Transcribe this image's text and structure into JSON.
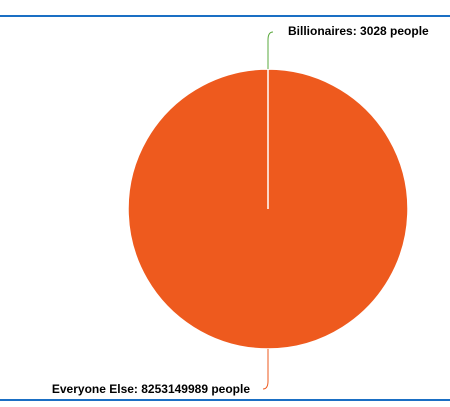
{
  "chart_data": {
    "type": "pie",
    "values": [
      3028,
      8253149989
    ],
    "value_labels": [
      "Billionaires: 3028 people",
      "Everyone Else: 8253149989 people"
    ],
    "colors": [
      "#5aa83c",
      "#ee5a1e"
    ]
  }
}
